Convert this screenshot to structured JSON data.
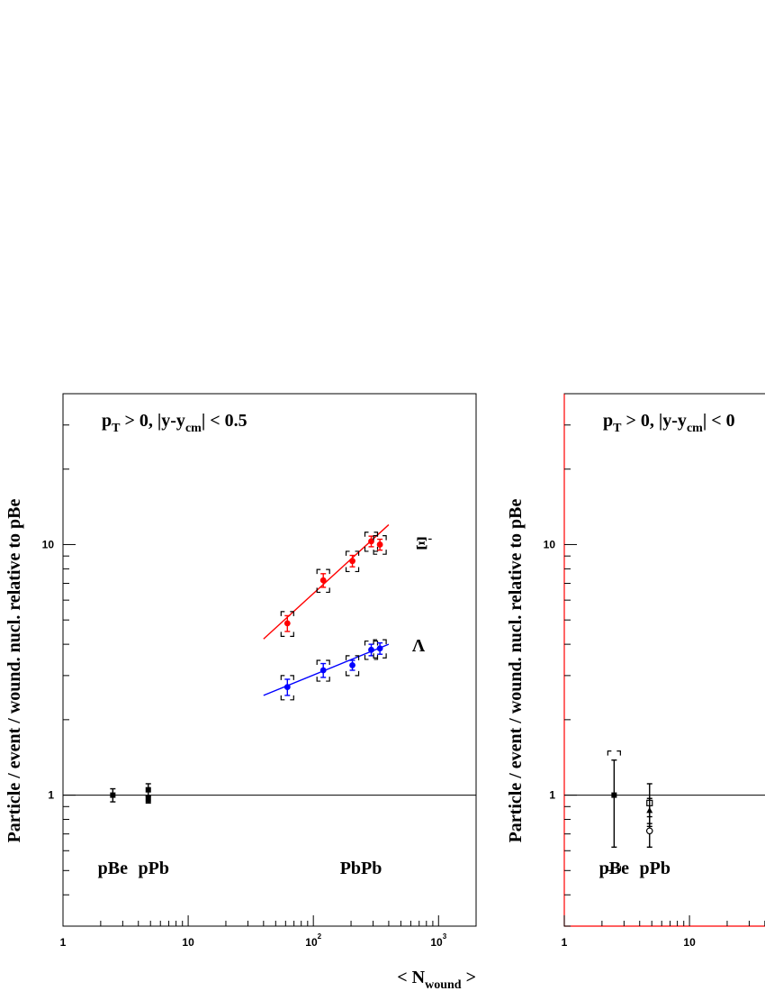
{
  "chart_data": [
    {
      "type": "scatter",
      "x_scale": "log",
      "y_scale": "log",
      "xlim": [
        1,
        2000
      ],
      "ylim": [
        0.3,
        40
      ],
      "ylabel": "Particle / event / wound. nucl. relative to pBe",
      "xlabel_main": "< N",
      "xlabel_sub": "wound",
      "xlabel_end": " >",
      "annotation": {
        "main": "p",
        "sub": "T",
        "rest": " > 0,   |y-y",
        "sub2": "cm",
        "rest2": "| < 0.5"
      },
      "system_labels": [
        "pBe",
        "pPb",
        "PbPb"
      ],
      "x_ticks": [
        {
          "v": 1,
          "t": "1"
        },
        {
          "v": 10,
          "t": "10"
        },
        {
          "v": 100,
          "t": "10",
          "exp": "2"
        },
        {
          "v": 1000,
          "t": "10",
          "exp": "3"
        }
      ],
      "y_ticks": [
        {
          "v": 1,
          "t": "1"
        },
        {
          "v": 10,
          "t": "10"
        }
      ],
      "reference_line": 1,
      "series": [
        {
          "name": "Ξ-",
          "color": "#ff0000",
          "x": [
            62,
            120,
            205,
            290,
            340
          ],
          "y": [
            4.85,
            7.2,
            8.6,
            10.3,
            10.0
          ],
          "err_stat": [
            0.35,
            0.45,
            0.45,
            0.5,
            0.5
          ],
          "err_syst": [
            0.55,
            0.75,
            0.8,
            0.9,
            0.85
          ],
          "fit": {
            "x": [
              40,
              400
            ],
            "y": [
              4.2,
              12.0
            ]
          }
        },
        {
          "name": "Λ",
          "color": "#0000ff",
          "x": [
            62,
            120,
            205,
            290,
            340
          ],
          "y": [
            2.7,
            3.15,
            3.3,
            3.8,
            3.85
          ],
          "err_stat": [
            0.2,
            0.2,
            0.15,
            0.2,
            0.2
          ],
          "err_syst": [
            0.3,
            0.3,
            0.3,
            0.32,
            0.32
          ],
          "fit": {
            "x": [
              40,
              400
            ],
            "y": [
              2.5,
              4.0
            ]
          }
        },
        {
          "name": "pBe/pPb",
          "color": "#000000",
          "x": [
            2.5,
            4.8,
            4.8
          ],
          "y": [
            1.0,
            1.05,
            0.96
          ],
          "err_stat": [
            0.06,
            0.06,
            0.03
          ],
          "err_syst": [
            0,
            0,
            0
          ],
          "marker": "square"
        }
      ]
    },
    {
      "type": "scatter",
      "x_scale": "log",
      "y_scale": "log",
      "xlim": [
        1,
        2000
      ],
      "ylim": [
        0.3,
        40
      ],
      "ylabel": "Particle / event / wound. nucl. relative to pBe",
      "annotation": {
        "main": "p",
        "sub": "T",
        "rest": " > 0,   |y-y",
        "sub2": "cm",
        "rest2": "| < 0"
      },
      "system_labels": [
        "pBe",
        "pPb"
      ],
      "x_ticks": [
        {
          "v": 1,
          "t": "1"
        },
        {
          "v": 10,
          "t": "10"
        }
      ],
      "y_ticks": [
        {
          "v": 1,
          "t": "1"
        },
        {
          "v": 10,
          "t": "10"
        }
      ],
      "reference_line": 1,
      "series": [
        {
          "name": "pBe",
          "color": "#000000",
          "x": [
            2.5
          ],
          "y": [
            1.0
          ],
          "err_stat": [
            0.38
          ],
          "err_syst": [
            0.5
          ],
          "marker": "square"
        },
        {
          "name": "pPb",
          "color": "#000000",
          "x": [
            4.8,
            4.8,
            4.8
          ],
          "y": [
            0.93,
            0.87,
            0.72
          ],
          "err_stat": [
            0.18,
            0.1,
            0.1
          ],
          "err_syst": [
            0,
            0,
            0
          ],
          "marker": "open"
        }
      ]
    }
  ]
}
